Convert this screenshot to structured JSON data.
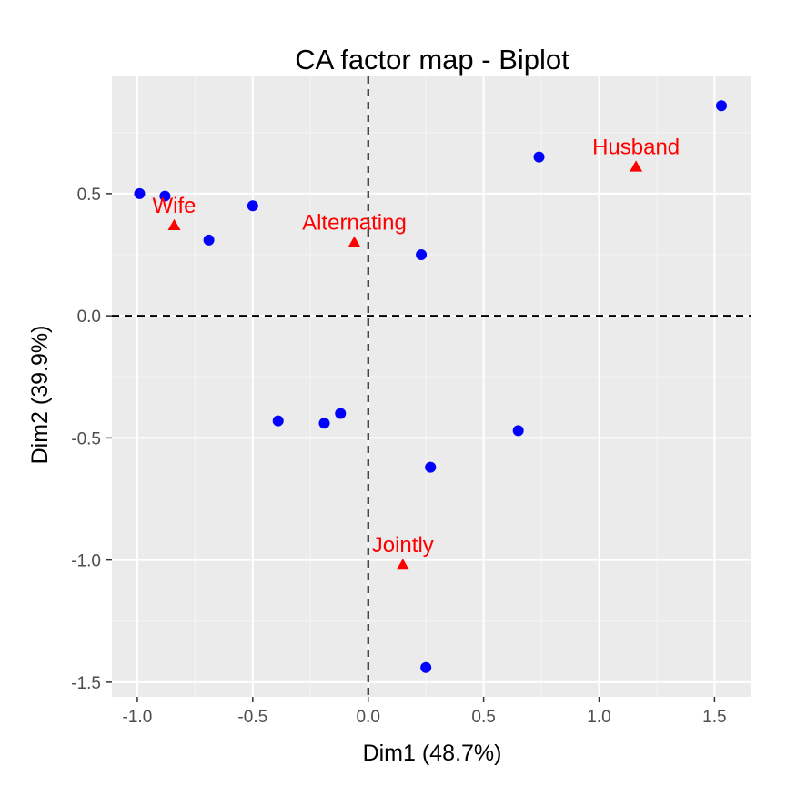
{
  "chart_data": {
    "type": "scatter",
    "title": "CA factor map - Biplot",
    "xlabel": "Dim1 (48.7%)",
    "ylabel": "Dim2 (39.9%)",
    "xlim": [
      -1.11,
      1.66
    ],
    "ylim": [
      -1.56,
      0.98
    ],
    "xticks": [
      -1.0,
      -0.5,
      0.0,
      0.5,
      1.0,
      1.5
    ],
    "xtick_labels": [
      "-1.0",
      "-0.5",
      "0.0",
      "0.5",
      "1.0",
      "1.5"
    ],
    "yticks": [
      -1.5,
      -1.0,
      -0.5,
      0.0,
      0.5
    ],
    "ytick_labels": [
      "-1.5",
      "-1.0",
      "-0.5",
      "0.0",
      "0.5"
    ],
    "grid": true,
    "reference_lines": {
      "x": 0,
      "y": 0,
      "style": "dashed"
    },
    "colors": {
      "panel": "#ebebeb",
      "grid": "#ffffff",
      "rows": "#0000ff",
      "cols": "#ff0000"
    },
    "series": [
      {
        "marker": "circle",
        "color": "#0000ff",
        "points": [
          {
            "x": -0.99,
            "y": 0.5
          },
          {
            "x": -0.88,
            "y": 0.49
          },
          {
            "x": -0.69,
            "y": 0.31
          },
          {
            "x": -0.5,
            "y": 0.45
          },
          {
            "x": 0.23,
            "y": 0.25
          },
          {
            "x": 0.74,
            "y": 0.65
          },
          {
            "x": 1.53,
            "y": 0.86
          },
          {
            "x": -0.39,
            "y": -0.43
          },
          {
            "x": -0.19,
            "y": -0.44
          },
          {
            "x": -0.12,
            "y": -0.4
          },
          {
            "x": 0.65,
            "y": -0.47
          },
          {
            "x": 0.27,
            "y": -0.62
          },
          {
            "x": 0.25,
            "y": -1.44
          }
        ]
      },
      {
        "marker": "triangle",
        "color": "#ff0000",
        "points": [
          {
            "label": "Wife",
            "x": -0.84,
            "y": 0.37
          },
          {
            "label": "Alternating",
            "x": -0.06,
            "y": 0.3
          },
          {
            "label": "Husband",
            "x": 1.16,
            "y": 0.61
          },
          {
            "label": "Jointly",
            "x": 0.15,
            "y": -1.02
          }
        ]
      }
    ]
  }
}
